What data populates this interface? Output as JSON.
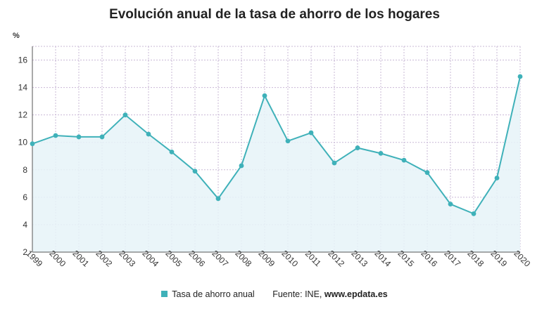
{
  "colors": {
    "series": "#3fb1b9",
    "area": "#e6f3f8",
    "grid": "#c9b8d6",
    "axis": "#555555",
    "legend_swatch": "#3fb1b9"
  },
  "chart_data": {
    "type": "line",
    "title": "Evolución anual de la tasa de ahorro de los hogares",
    "ylabel": "%",
    "xlabel": "",
    "x": [
      "1999",
      "2000",
      "2001",
      "2002",
      "2003",
      "2004",
      "2005",
      "2006",
      "2007",
      "2008",
      "2009",
      "2010",
      "2011",
      "2012",
      "2013",
      "2014",
      "2015",
      "2016",
      "2017",
      "2018",
      "2019",
      "2020"
    ],
    "series": [
      {
        "name": "Tasa de ahorro anual",
        "values": [
          9.9,
          10.5,
          10.4,
          10.4,
          12.0,
          10.6,
          9.3,
          7.9,
          5.9,
          8.3,
          13.4,
          10.1,
          10.7,
          8.5,
          9.6,
          9.2,
          8.7,
          7.8,
          5.5,
          4.8,
          7.4,
          14.8
        ]
      }
    ],
    "ylim": [
      2,
      17
    ],
    "yticks": [
      2,
      4,
      6,
      8,
      10,
      12,
      14,
      16
    ],
    "grid": true,
    "area_fill": true,
    "legend_position": "bottom"
  },
  "footer": {
    "legend_label": "Tasa de ahorro anual",
    "source_prefix": "Fuente: INE,",
    "source_name": "www.epdata.es"
  }
}
